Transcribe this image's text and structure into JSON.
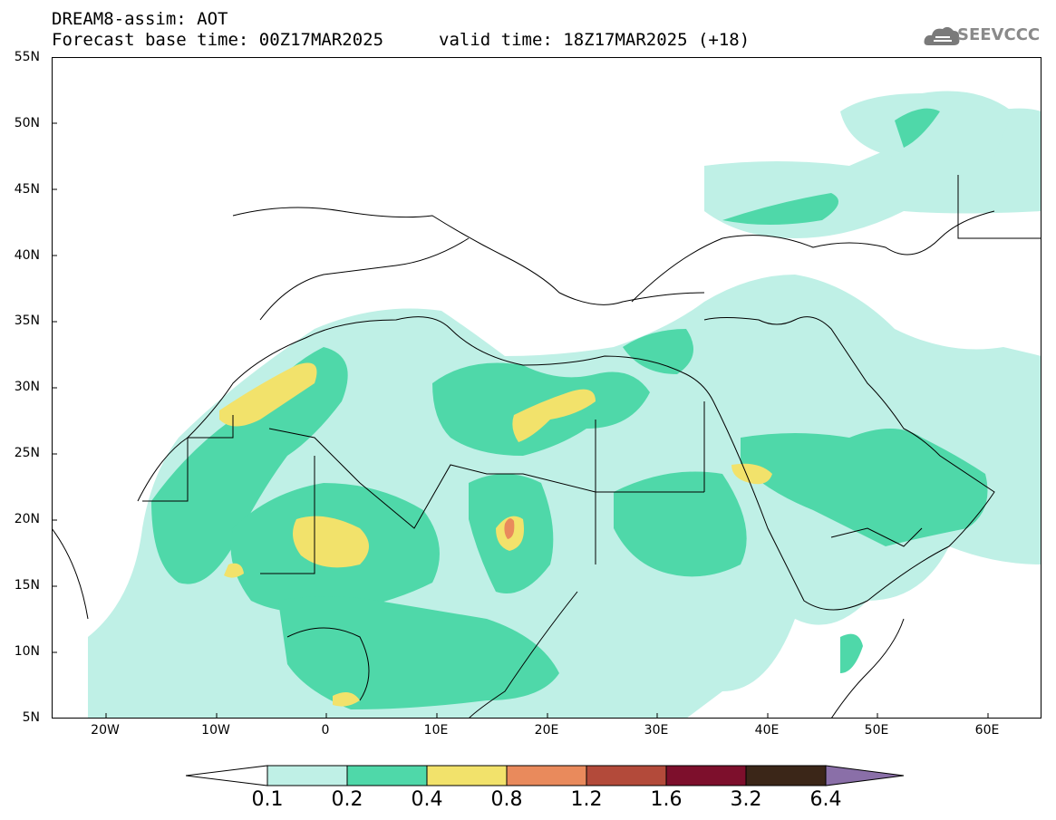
{
  "header": {
    "line1": "DREAM8-assim: AOT",
    "line2": "Forecast base time: 00Z17MAR2025",
    "valid": "valid time: 18Z17MAR2025 (+18)"
  },
  "logo": {
    "text": "SEEVCCC",
    "icon": "cloud-icon"
  },
  "axes": {
    "lat_labels": [
      "55N",
      "50N",
      "45N",
      "40N",
      "35N",
      "30N",
      "25N",
      "20N",
      "15N",
      "10N",
      "5N"
    ],
    "lon_labels": [
      "20W",
      "10W",
      "0",
      "10E",
      "20E",
      "30E",
      "40E",
      "50E",
      "60E"
    ],
    "lon_range": [
      -25,
      65
    ],
    "lat_range": [
      5,
      55
    ]
  },
  "colorbar": {
    "levels": [
      "0.1",
      "0.2",
      "0.4",
      "0.8",
      "1.2",
      "1.6",
      "3.2",
      "6.4"
    ],
    "colors": [
      "#ffffff",
      "#bff0e6",
      "#4fd8a9",
      "#f2e26b",
      "#e98a5c",
      "#b34a3a",
      "#7d0f2c",
      "#3b2618",
      "#8a6fa8"
    ]
  }
}
